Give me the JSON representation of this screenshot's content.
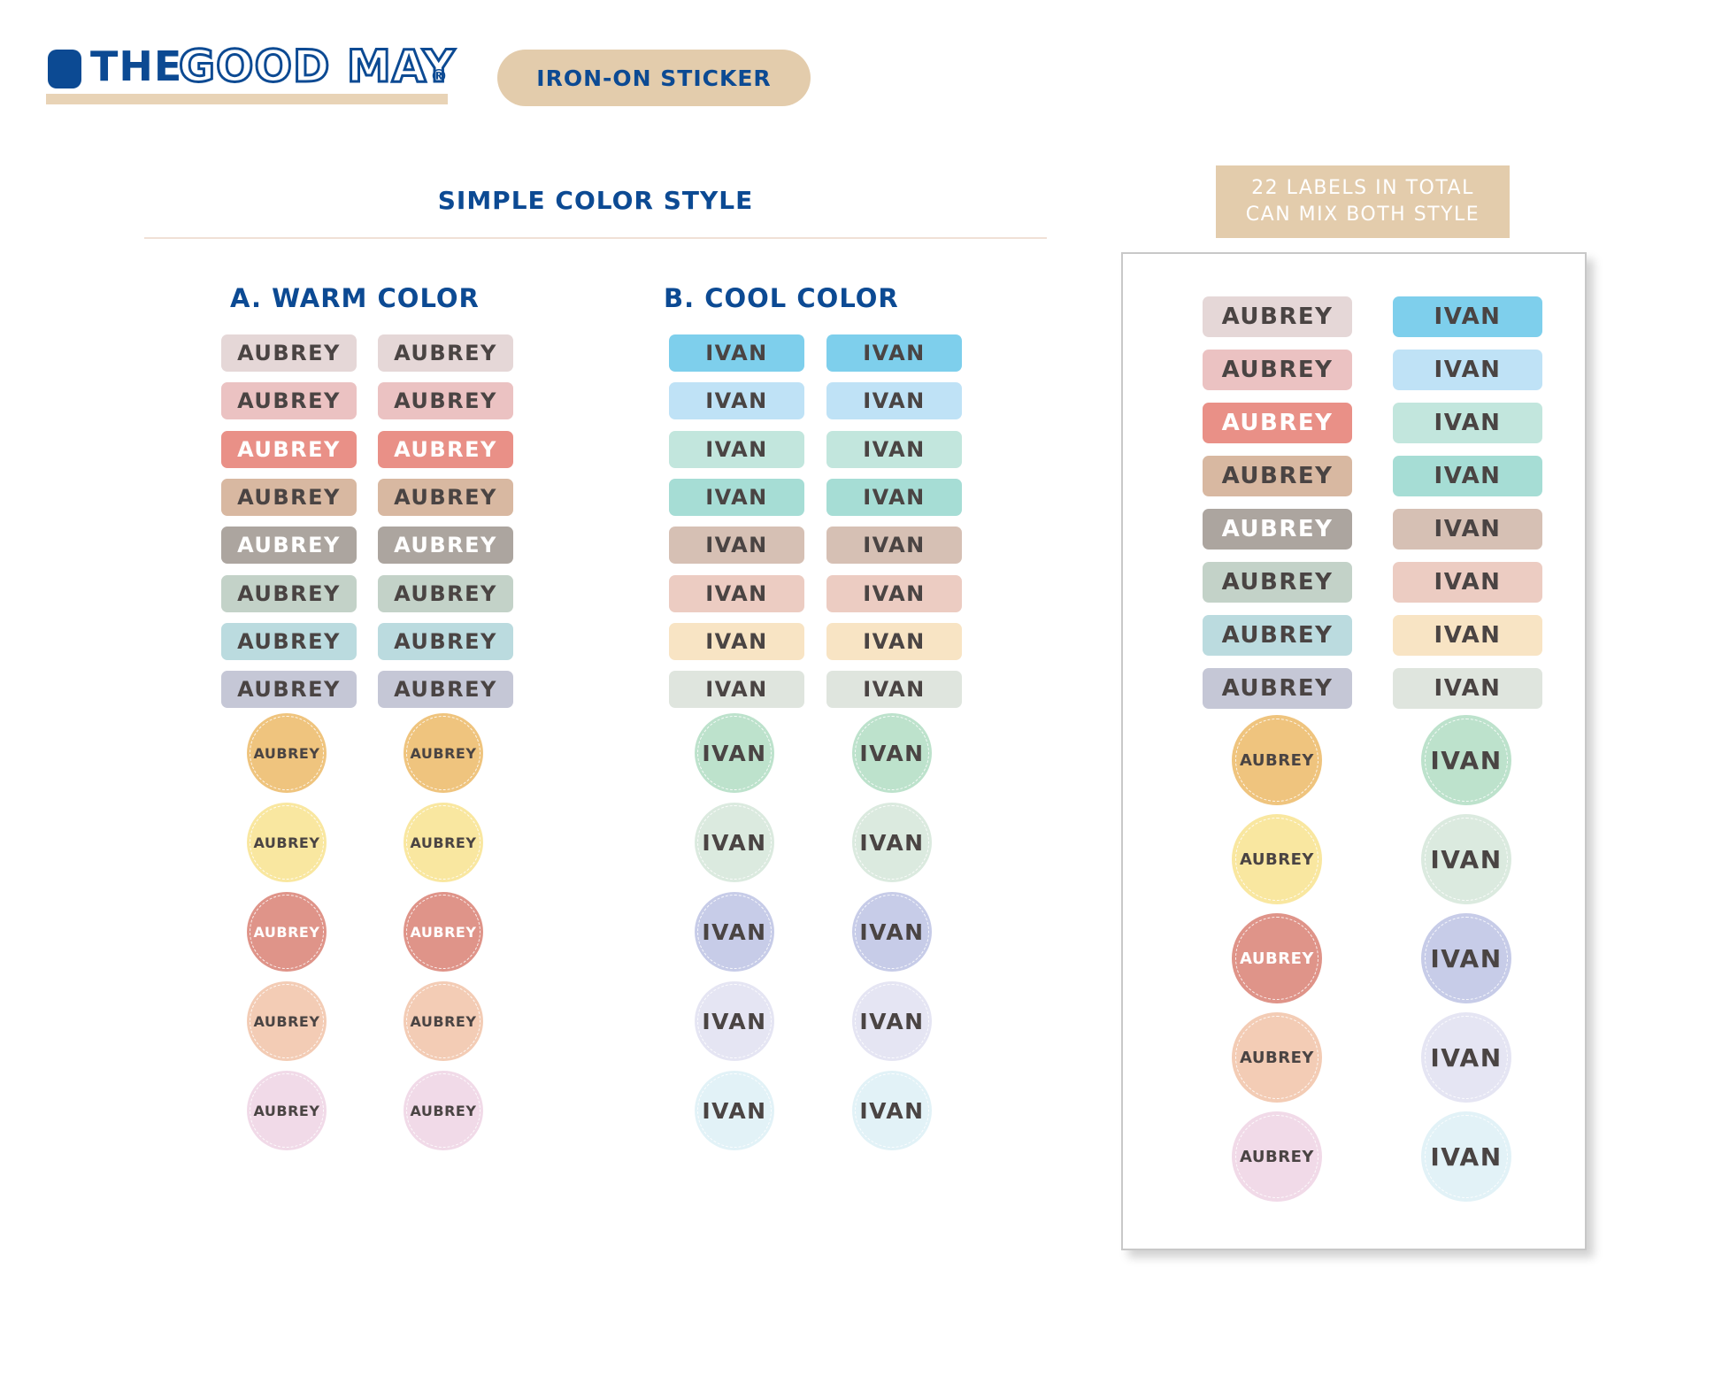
{
  "brand": {
    "the": "THE",
    "good_may": "GOOD MAY",
    "reg": "®"
  },
  "badge": "IRON-ON STICKER",
  "section_title": "SIMPLE COLOR STYLE",
  "warm": {
    "title": "A. WARM COLOR",
    "label": "AUBREY",
    "rect_colors": [
      "#e5d7d7",
      "#ebc2c2",
      "#e99087",
      "#d8b8a1",
      "#aca59f",
      "#c3d2c8",
      "#bbdbdf",
      "#c5c7d6"
    ],
    "rect_white_text": [
      false,
      false,
      true,
      false,
      true,
      false,
      false,
      false
    ],
    "circle_colors": [
      "#efc47e",
      "#f9e7a0",
      "#df9489",
      "#f3ccb5",
      "#f1dae8"
    ],
    "circle_white_text": [
      false,
      false,
      true,
      false,
      false
    ]
  },
  "cool": {
    "title": "B. COOL COLOR",
    "label": "IVAN",
    "rect_colors": [
      "#7ecfec",
      "#bfe2f6",
      "#c2e6dd",
      "#a6ddd5",
      "#d6c0b4",
      "#ecccc2",
      "#f8e4c4",
      "#dfe5de"
    ],
    "circle_colors": [
      "#bde2cc",
      "#dbeadf",
      "#c7cce8",
      "#e5e5f3",
      "#e2f2f7"
    ]
  },
  "panel": {
    "note_line1": "22 LABELS IN TOTAL",
    "note_line2": "CAN MIX BOTH STYLE",
    "left_label": "AUBREY",
    "right_label": "IVAN",
    "left_rect_colors": [
      "#e5d7d7",
      "#ebc2c2",
      "#e99087",
      "#d8b8a1",
      "#aca59f",
      "#c3d2c8",
      "#bbdbdf",
      "#c5c7d6"
    ],
    "left_rect_white_text": [
      false,
      false,
      true,
      false,
      true,
      false,
      false,
      false
    ],
    "right_rect_colors": [
      "#7ecfec",
      "#bfe2f6",
      "#c2e6dd",
      "#a6ddd5",
      "#d6c0b4",
      "#ecccc2",
      "#f8e4c4",
      "#dfe5de"
    ],
    "left_circle_colors": [
      "#efc47e",
      "#f9e7a0",
      "#df9489",
      "#f3ccb5",
      "#f1dae8"
    ],
    "left_circle_white_text": [
      false,
      false,
      true,
      false,
      false
    ],
    "right_circle_colors": [
      "#bde2cc",
      "#dbeadf",
      "#c7cce8",
      "#e5e5f3",
      "#e2f2f7"
    ]
  }
}
